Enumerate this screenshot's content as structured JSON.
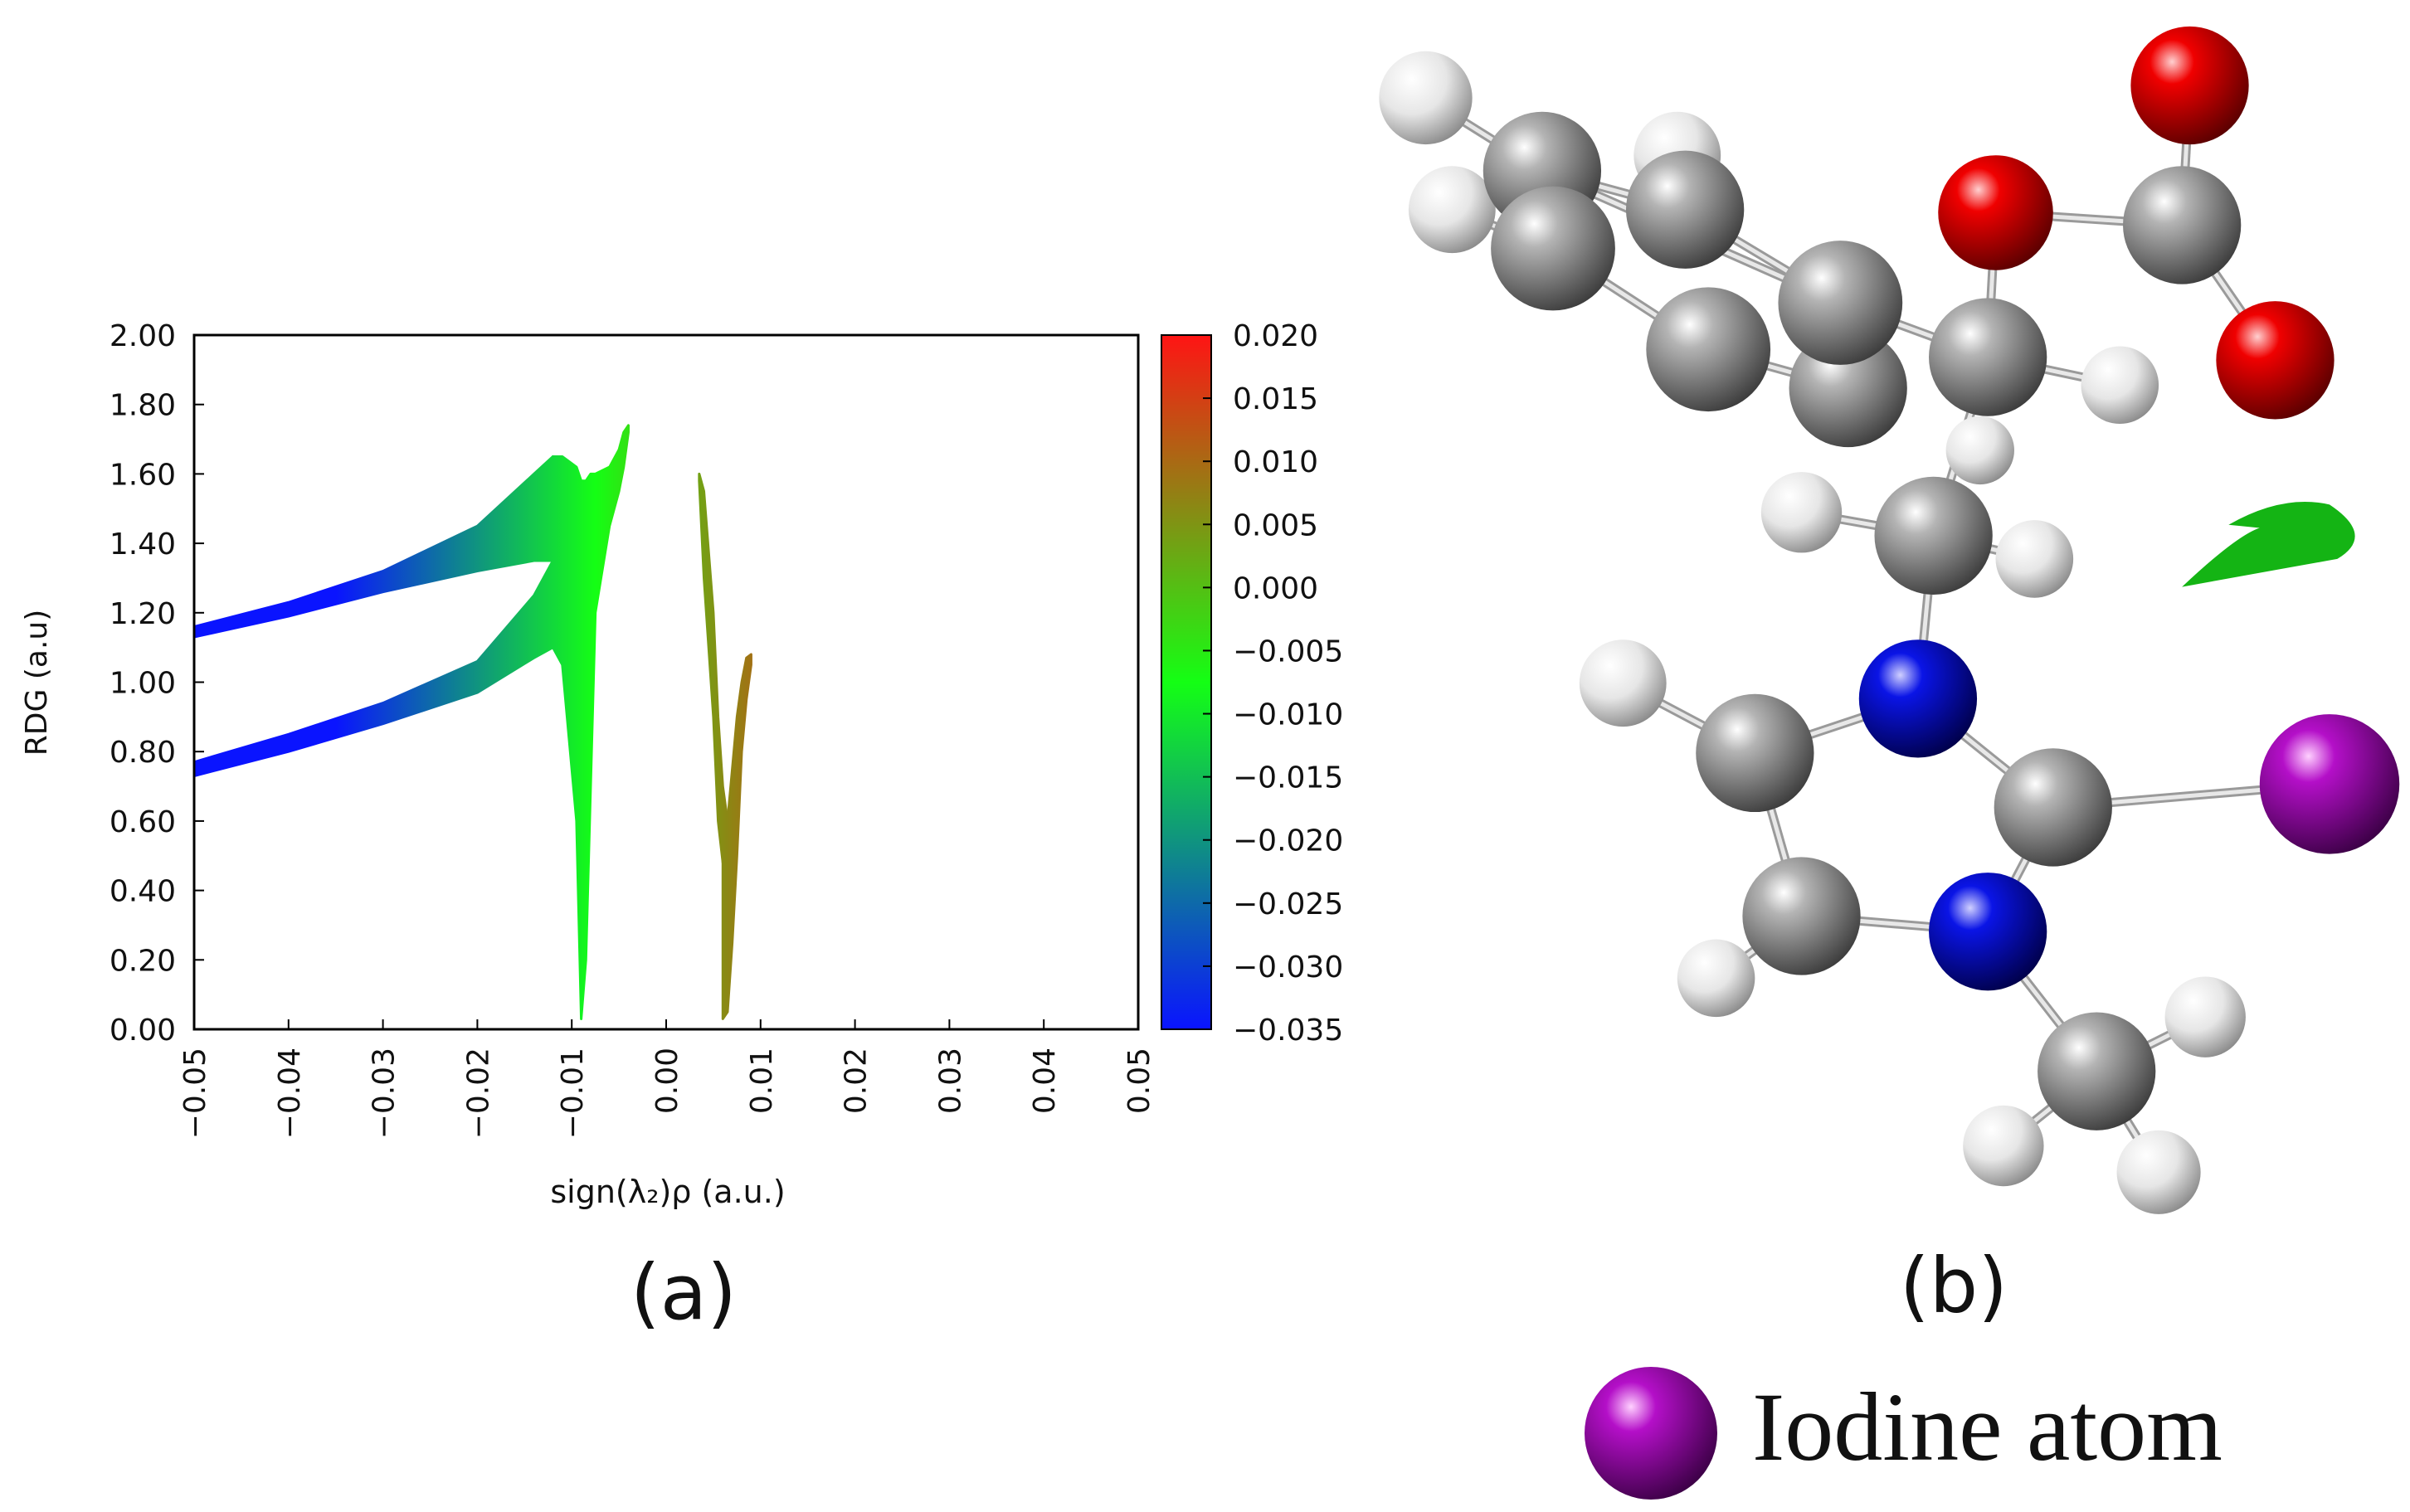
{
  "chart_data": {
    "type": "area",
    "xlabel": "sign(λ₂)ρ (a.u.)",
    "ylabel": "RDG (a.u)",
    "xlim": [
      -0.05,
      0.05
    ],
    "ylim": [
      0,
      2
    ],
    "xticks": [
      {
        "value": -0.05,
        "label": "−0.05"
      },
      {
        "value": -0.04,
        "label": "−0.04"
      },
      {
        "value": -0.03,
        "label": "−0.03"
      },
      {
        "value": -0.02,
        "label": "−0.02"
      },
      {
        "value": -0.01,
        "label": "−0.01"
      },
      {
        "value": 0,
        "label": "0.00"
      },
      0.01,
      0.02,
      0.03,
      0.04,
      0.05
    ],
    "yticks": [
      {
        "value": 0,
        "label": "0.00"
      },
      {
        "value": 0.2,
        "label": "0.20"
      },
      {
        "value": 0.4,
        "label": "0.40"
      },
      {
        "value": 0.6,
        "label": "0.60"
      },
      {
        "value": 0.8,
        "label": "0.80"
      },
      {
        "value": 1,
        "label": "1.00"
      },
      {
        "value": 1.2,
        "label": "1.20"
      },
      {
        "value": 1.4,
        "label": "1.40"
      },
      {
        "value": 1.6,
        "label": "1.60"
      },
      {
        "value": 1.8,
        "label": "1.80"
      },
      {
        "value": 2,
        "label": "2.00"
      }
    ],
    "colorbar": {
      "clim": [
        -0.035,
        0.02
      ],
      "colormap": [
        "#0a14ff",
        "#14ff14",
        "#ff1414"
      ],
      "ticks": [
        {
          "value": -0.035,
          "label": "−0.035"
        },
        {
          "value": -0.03,
          "label": "−0.030"
        },
        {
          "value": -0.025,
          "label": "−0.025"
        },
        {
          "value": -0.02,
          "label": "−0.020"
        },
        {
          "value": -0.015,
          "label": "−0.015"
        },
        {
          "value": -0.01,
          "label": "−0.010"
        },
        {
          "value": -0.005,
          "label": "−0.005"
        },
        {
          "value": 0,
          "label": "0.000"
        },
        0.005,
        {
          "value": 0.01,
          "label": "0.010"
        },
        0.015,
        {
          "value": 0.02,
          "label": "0.020"
        }
      ]
    },
    "series": [
      {
        "x": [
          -0.05,
          -0.04,
          -0.03,
          -0.02,
          -0.014,
          -0.012
        ],
        "low": [
          1.13,
          1.19,
          1.26,
          1.32,
          1.35,
          1.35
        ],
        "high": [
          1.16,
          1.23,
          1.32,
          1.45,
          1.6,
          1.65
        ]
      },
      {
        "x": [
          -0.05,
          -0.04,
          -0.03,
          -0.02,
          -0.014,
          -0.012
        ],
        "low": [
          0.73,
          0.8,
          0.88,
          0.97,
          1.07,
          1.1
        ],
        "high": [
          0.77,
          0.85,
          0.94,
          1.06,
          1.25,
          1.35
        ]
      },
      {
        "x": [
          -0.012,
          -0.011,
          -0.0095,
          -0.009,
          -0.0085,
          -0.008,
          -0.0075,
          -0.006,
          -0.005,
          -0.0045,
          -0.004
        ],
        "low": [
          1.1,
          1.05,
          0.6,
          0.03,
          0.2,
          0.7,
          1.2,
          1.45,
          1.55,
          1.62,
          1.72
        ],
        "high": [
          1.65,
          1.65,
          1.62,
          1.58,
          1.58,
          1.6,
          1.6,
          1.62,
          1.67,
          1.72,
          1.74
        ]
      },
      {
        "x": [
          0.0035,
          0.004,
          0.005,
          0.0055,
          0.006,
          0.0065,
          0.007
        ],
        "low": [
          1.58,
          1.3,
          0.9,
          0.6,
          0.48,
          0.5,
          0.6
        ],
        "high": [
          1.6,
          1.55,
          1.2,
          0.9,
          0.7,
          0.6,
          0.6
        ]
      },
      {
        "x": [
          0.006,
          0.0065,
          0.007,
          0.0075,
          0.008,
          0.0085,
          0.009
        ],
        "low": [
          0.03,
          0.05,
          0.25,
          0.5,
          0.8,
          0.95,
          1.05
        ],
        "high": [
          0.6,
          0.6,
          0.75,
          0.9,
          1.0,
          1.07,
          1.08
        ]
      }
    ]
  },
  "panels": {
    "a": "(a)",
    "b": "(b)"
  },
  "legend": {
    "label": "Iodine atom"
  }
}
